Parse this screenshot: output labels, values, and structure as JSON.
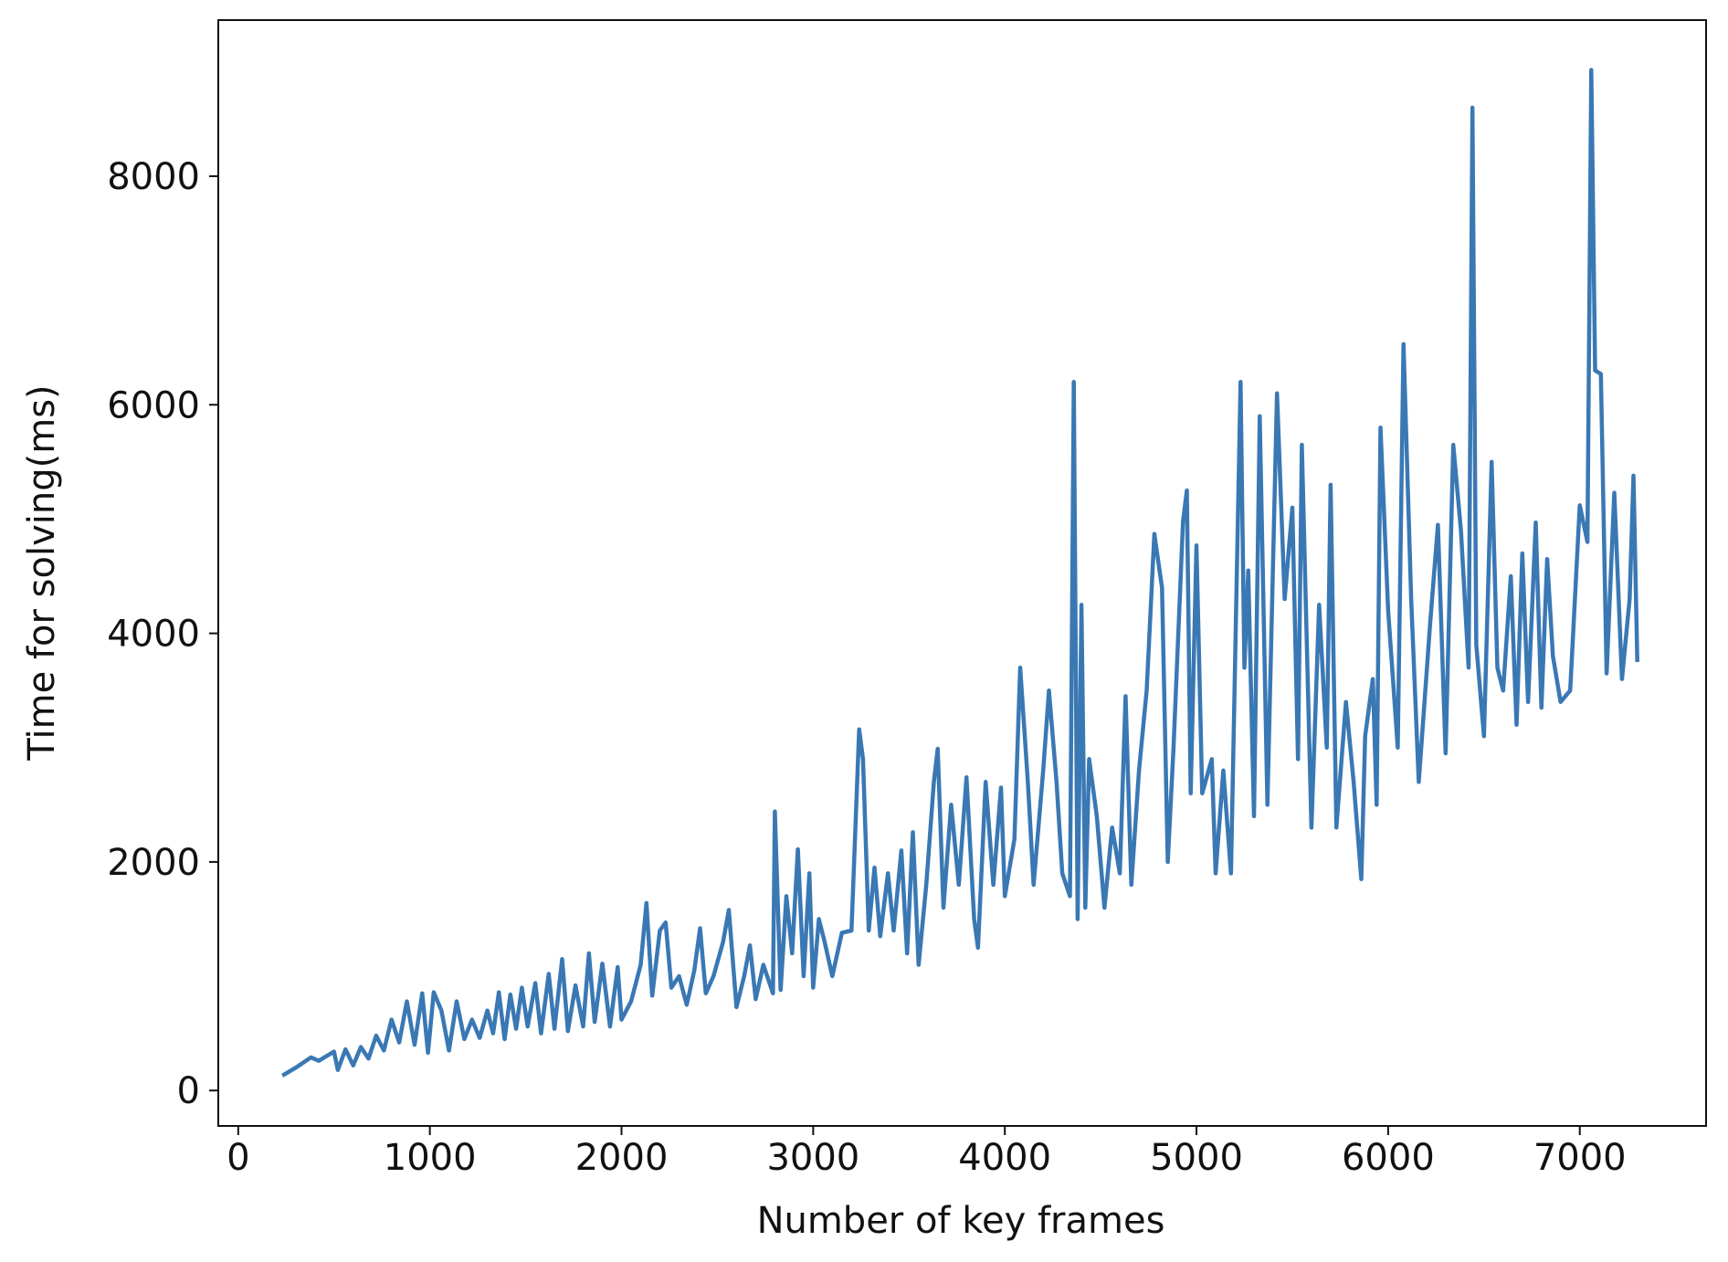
{
  "chart_data": {
    "type": "line",
    "x_label": "Number of key frames",
    "y_label": "Time for solving(ms)",
    "xlim": [
      -104,
      7659
    ],
    "ylim": [
      -310,
      9366
    ],
    "xticks": [
      0,
      1000,
      2000,
      3000,
      4000,
      5000,
      6000,
      7000
    ],
    "yticks": [
      0,
      2000,
      4000,
      6000,
      8000
    ],
    "x": [
      230,
      300,
      380,
      420,
      500,
      520,
      560,
      600,
      640,
      680,
      720,
      760,
      800,
      840,
      880,
      920,
      960,
      990,
      1020,
      1060,
      1100,
      1140,
      1180,
      1220,
      1260,
      1300,
      1330,
      1360,
      1390,
      1420,
      1450,
      1480,
      1510,
      1550,
      1580,
      1620,
      1650,
      1690,
      1720,
      1760,
      1800,
      1830,
      1860,
      1900,
      1940,
      1980,
      2000,
      2050,
      2100,
      2130,
      2160,
      2200,
      2230,
      2260,
      2300,
      2340,
      2380,
      2410,
      2440,
      2480,
      2530,
      2560,
      2600,
      2640,
      2670,
      2700,
      2740,
      2790,
      2800,
      2830,
      2860,
      2890,
      2920,
      2950,
      2980,
      3000,
      3030,
      3060,
      3100,
      3150,
      3200,
      3240,
      3260,
      3290,
      3320,
      3350,
      3390,
      3420,
      3460,
      3490,
      3520,
      3550,
      3590,
      3630,
      3650,
      3680,
      3720,
      3760,
      3800,
      3840,
      3860,
      3900,
      3940,
      3980,
      4000,
      4050,
      4080,
      4120,
      4150,
      4200,
      4230,
      4270,
      4300,
      4340,
      4360,
      4380,
      4400,
      4420,
      4440,
      4480,
      4520,
      4560,
      4600,
      4630,
      4660,
      4700,
      4740,
      4780,
      4820,
      4850,
      4880,
      4930,
      4950,
      4970,
      5000,
      5030,
      5080,
      5100,
      5140,
      5180,
      5230,
      5250,
      5270,
      5300,
      5330,
      5370,
      5420,
      5460,
      5500,
      5530,
      5550,
      5600,
      5640,
      5680,
      5700,
      5730,
      5780,
      5820,
      5860,
      5880,
      5920,
      5940,
      5960,
      6000,
      6050,
      6080,
      6120,
      6160,
      6220,
      6260,
      6300,
      6340,
      6380,
      6420,
      6440,
      6460,
      6500,
      6540,
      6570,
      6600,
      6640,
      6670,
      6700,
      6730,
      6770,
      6800,
      6830,
      6860,
      6900,
      6950,
      7000,
      7040,
      7060,
      7080,
      7110,
      7140,
      7180,
      7220,
      7260,
      7280,
      7300
    ],
    "series": [
      {
        "color": "#3a78b4",
        "values": [
          130,
          200,
          290,
          260,
          340,
          180,
          360,
          220,
          380,
          280,
          480,
          350,
          620,
          420,
          780,
          400,
          850,
          330,
          860,
          700,
          350,
          780,
          450,
          620,
          460,
          700,
          500,
          860,
          450,
          840,
          540,
          900,
          560,
          940,
          500,
          1020,
          540,
          1150,
          520,
          920,
          560,
          1200,
          600,
          1110,
          560,
          1080,
          620,
          780,
          1100,
          1640,
          830,
          1400,
          1470,
          900,
          1000,
          750,
          1050,
          1420,
          850,
          1000,
          1300,
          1580,
          730,
          1000,
          1270,
          800,
          1100,
          850,
          2440,
          880,
          1700,
          1200,
          2110,
          1000,
          1900,
          900,
          1500,
          1300,
          1000,
          1380,
          1400,
          3160,
          2900,
          1400,
          1950,
          1350,
          1900,
          1400,
          2100,
          1200,
          2260,
          1100,
          1800,
          2700,
          2990,
          1600,
          2500,
          1800,
          2740,
          1500,
          1250,
          2700,
          1800,
          2650,
          1700,
          2200,
          3700,
          2700,
          1800,
          2800,
          3500,
          2700,
          1900,
          1700,
          6200,
          1500,
          4250,
          1600,
          2900,
          2400,
          1600,
          2300,
          1900,
          3450,
          1800,
          2800,
          3500,
          4870,
          4400,
          2000,
          3000,
          4980,
          5250,
          2600,
          4770,
          2600,
          2900,
          1900,
          2800,
          1900,
          6200,
          3700,
          4550,
          2400,
          5900,
          2500,
          6100,
          4300,
          5100,
          2900,
          5650,
          2300,
          4250,
          3000,
          5300,
          2300,
          3400,
          2700,
          1850,
          3100,
          3600,
          2500,
          5800,
          4200,
          3000,
          6530,
          4300,
          2700,
          4100,
          4950,
          2950,
          5650,
          4900,
          3700,
          8600,
          3900,
          3100,
          5500,
          3700,
          3500,
          4500,
          3200,
          4700,
          3400,
          4970,
          3350,
          4650,
          3800,
          3400,
          3500,
          5120,
          4800,
          8930,
          6300,
          6270,
          3650,
          5230,
          3600,
          4300,
          5380,
          3750
        ]
      }
    ]
  }
}
